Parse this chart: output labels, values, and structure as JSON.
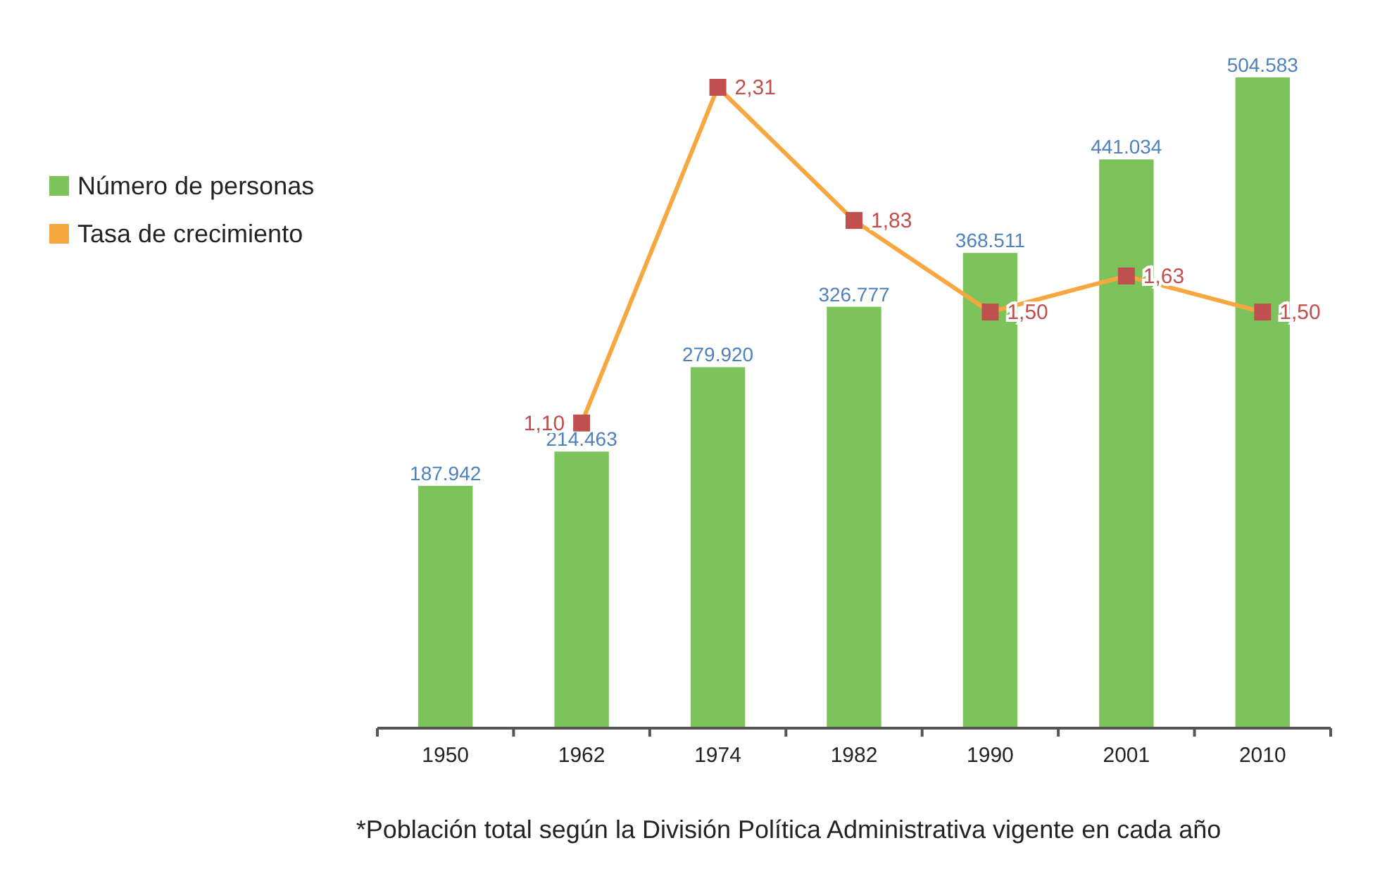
{
  "chart_data": {
    "type": "bar",
    "categories": [
      "1950",
      "1962",
      "1974",
      "1982",
      "1990",
      "2001",
      "2010"
    ],
    "series": [
      {
        "name": "Número de personas",
        "color": "#7dc35b",
        "values": [
          187942,
          214463,
          279920,
          326777,
          368511,
          441034,
          504583
        ],
        "value_labels": [
          "187.942",
          "214.463",
          "279.920",
          "326.777",
          "368.511",
          "441.034",
          "504.583"
        ]
      },
      {
        "name": "Tasa de crecimiento",
        "type": "line",
        "axis": "y2",
        "color": "#f7a740",
        "marker": "square",
        "values": [
          null,
          1.1,
          2.31,
          1.83,
          1.5,
          1.63,
          1.5
        ],
        "value_labels": [
          null,
          "1,10",
          "2,31",
          "1,83",
          "1,50",
          "1,63",
          "1,50"
        ]
      }
    ],
    "relative": false,
    "legend": "top left",
    "grid": false,
    "tick_labels": "x",
    "annotations": [
      "*Población total según la División Política Administrativa vigente en cada año"
    ]
  }
}
